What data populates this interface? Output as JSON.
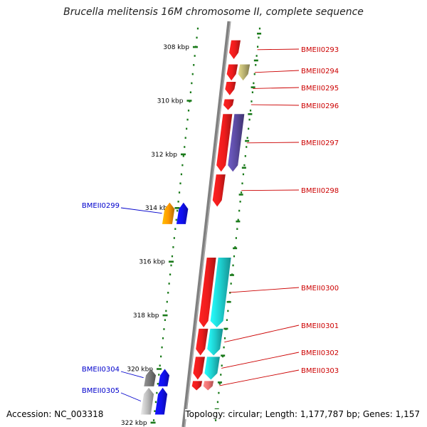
{
  "title": "Brucella melitensis 16M chromosome II, complete sequence",
  "footer": {
    "accession": "Accession: NC_003318",
    "topology": "Topology: circular; Length: 1,177,787 bp; Genes: 1,157"
  },
  "colors": {
    "backbone": "#808080",
    "tick": "#1a7a1a",
    "forward_label": "#cc0000",
    "reverse_label": "#0000cc"
  },
  "ruler": {
    "unit": "kbp",
    "ticks": [
      {
        "kbp": 308,
        "label": "308 kbp"
      },
      {
        "kbp": 310,
        "label": "310 kbp"
      },
      {
        "kbp": 312,
        "label": "312 kbp"
      },
      {
        "kbp": 314,
        "label": "314 kbp"
      },
      {
        "kbp": 316,
        "label": "316 kbp"
      },
      {
        "kbp": 318,
        "label": "318 kbp"
      },
      {
        "kbp": 320,
        "label": "320 kbp"
      },
      {
        "kbp": 322,
        "label": "322 kbp"
      }
    ]
  },
  "genes": [
    {
      "label": "BMEII0293",
      "strand": "+",
      "start_kbp": 307.75,
      "end_kbp": 308.45,
      "cog_color": "#ee1c1c"
    },
    {
      "label": "BMEII0294",
      "strand": "+",
      "start_kbp": 308.65,
      "end_kbp": 309.25,
      "cog_color": "#b8b070"
    },
    {
      "label": "BMEII0295",
      "strand": "+",
      "start_kbp": 309.3,
      "end_kbp": 309.8,
      "cog_color": "#ee1c1c"
    },
    {
      "label": "BMEII0296",
      "strand": "+",
      "start_kbp": 309.95,
      "end_kbp": 310.35,
      "cog_color": "#ee1c1c"
    },
    {
      "label": "BMEII0297",
      "strand": "+",
      "start_kbp": 310.5,
      "end_kbp": 312.65,
      "cog_color": "#5a4aa0"
    },
    {
      "label": "BMEII0298",
      "strand": "+",
      "start_kbp": 312.75,
      "end_kbp": 313.95,
      "cog_color": "#ee1c1c"
    },
    {
      "label": "BMEII0299",
      "strand": "-",
      "start_kbp": 313.8,
      "end_kbp": 314.6,
      "cog_color": "#ff9900"
    },
    {
      "label": "BMEII0300",
      "strand": "+",
      "start_kbp": 315.85,
      "end_kbp": 318.45,
      "cog_color": "#1ecece"
    },
    {
      "label": "BMEII0301",
      "strand": "+",
      "start_kbp": 318.5,
      "end_kbp": 319.5,
      "cog_color": "#1ecece"
    },
    {
      "label": "BMEII0302",
      "strand": "+",
      "start_kbp": 319.55,
      "end_kbp": 320.4,
      "cog_color": "#1ecece"
    },
    {
      "label": "BMEII0303",
      "strand": "+",
      "start_kbp": 320.45,
      "end_kbp": 320.8,
      "cog_color": "#ee7070"
    },
    {
      "label": "BMEII0304",
      "strand": "-",
      "start_kbp": 320.0,
      "end_kbp": 320.65,
      "cog_color": "#777777"
    },
    {
      "label": "BMEII0305",
      "strand": "-",
      "start_kbp": 320.7,
      "end_kbp": 321.7,
      "cog_color": "#bdbdbd"
    }
  ]
}
